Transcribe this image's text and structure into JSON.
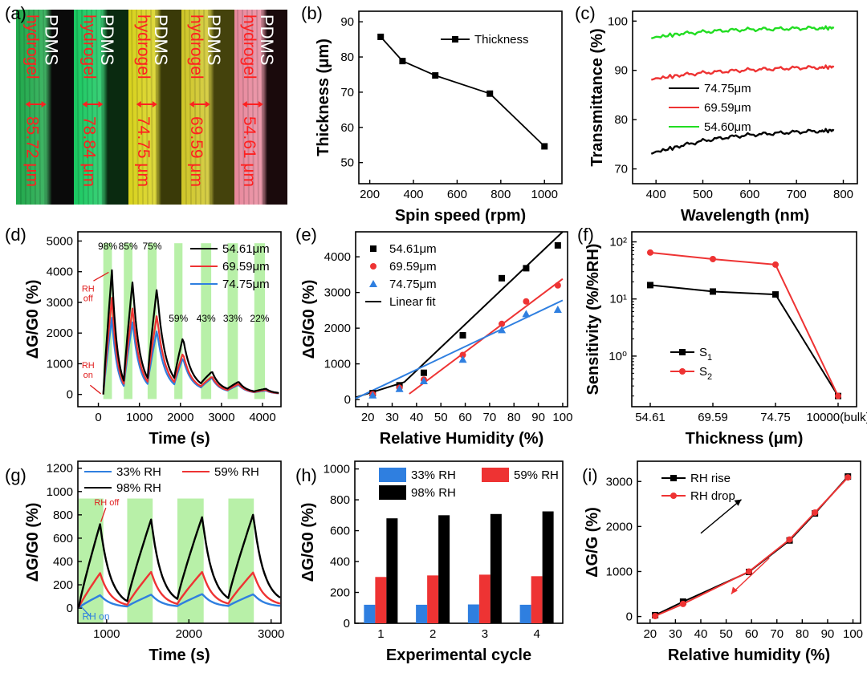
{
  "figure": {
    "panel_letters": [
      "(a)",
      "(b)",
      "(c)",
      "(d)",
      "(e)",
      "(f)",
      "(g)",
      "(h)",
      "(i)"
    ]
  },
  "panel_a": {
    "strips": [
      {
        "pdms": "PDMS",
        "hydrogel": "hydrogel",
        "thickness": "85.72 μm",
        "color": "#1fa84a",
        "edge": "#0a0a0a"
      },
      {
        "pdms": "PDMS",
        "hydrogel": "hydrogel",
        "thickness": "78.84 μm",
        "color": "#19c860",
        "edge": "#0a2a10"
      },
      {
        "pdms": "PDMS",
        "hydrogel": "hydrogel",
        "thickness": "74.75 μm",
        "color": "#d8d21c",
        "edge": "#3a3a08"
      },
      {
        "pdms": "PDMS",
        "hydrogel": "hydrogel",
        "thickness": "69.59 μm",
        "color": "#cfc628",
        "edge": "#44420c"
      },
      {
        "pdms": "PDMS",
        "hydrogel": "hydrogel",
        "thickness": "54.61 μm",
        "color": "#e8889c",
        "edge": "#1a0a0c"
      }
    ],
    "label_color": "#ff2020"
  },
  "chart_data": [
    {
      "panel": "b",
      "type": "line",
      "xlabel": "Spin speed (rpm)",
      "ylabel": "Thickness (μm)",
      "xlim": [
        150,
        1080
      ],
      "ylim": [
        44,
        93
      ],
      "xticks": [
        200,
        400,
        600,
        800,
        1000
      ],
      "yticks": [
        50,
        60,
        70,
        80,
        90
      ],
      "legend": "top-right",
      "series": [
        {
          "name": "Thickness",
          "color": "#000000",
          "marker": "square",
          "x": [
            250,
            350,
            500,
            750,
            1000
          ],
          "y": [
            85.72,
            78.84,
            74.75,
            69.59,
            54.61
          ]
        }
      ]
    },
    {
      "panel": "c",
      "type": "line",
      "xlabel": "Wavelength (nm)",
      "ylabel": "Transmittance (%)",
      "xlim": [
        350,
        830
      ],
      "ylim": [
        67,
        102
      ],
      "xticks": [
        400,
        500,
        600,
        700,
        800
      ],
      "yticks": [
        70,
        80,
        90,
        100
      ],
      "legend": "center-right",
      "series": [
        {
          "name": "74.75μm",
          "color": "#000000",
          "x": [
            390,
            450,
            500,
            550,
            600,
            650,
            700,
            750,
            780
          ],
          "y": [
            73.2,
            74.6,
            75.7,
            76.4,
            76.9,
            77.2,
            77.5,
            77.7,
            77.8
          ]
        },
        {
          "name": "69.59μm",
          "color": "#ee3333",
          "x": [
            390,
            450,
            500,
            550,
            600,
            650,
            700,
            750,
            780
          ],
          "y": [
            88.2,
            89.0,
            89.5,
            89.8,
            90.1,
            90.3,
            90.5,
            90.6,
            90.7
          ]
        },
        {
          "name": "54.60μm",
          "color": "#22dd22",
          "x": [
            390,
            450,
            500,
            550,
            600,
            650,
            700,
            750,
            780
          ],
          "y": [
            96.6,
            97.4,
            97.8,
            98.1,
            98.3,
            98.4,
            98.5,
            98.6,
            98.6
          ]
        }
      ]
    },
    {
      "panel": "d",
      "type": "line",
      "xlabel": "Time (s)",
      "ylabel": "ΔG/G0 (%)",
      "xlim": [
        -500,
        4450
      ],
      "ylim": [
        -400,
        5300
      ],
      "xticks": [
        0,
        1000,
        2000,
        3000,
        4000
      ],
      "yticks": [
        0,
        1000,
        2000,
        3000,
        4000,
        5000
      ],
      "legend": "top-right",
      "rh_bands": [
        [
          120,
          330
        ],
        [
          620,
          830
        ],
        [
          1200,
          1420
        ],
        [
          1850,
          2050
        ],
        [
          2500,
          2750
        ],
        [
          3150,
          3400
        ],
        [
          3800,
          4060
        ]
      ],
      "rh_labels": [
        "98%",
        "85%",
        "75%",
        "59%",
        "43%",
        "33%",
        "22%"
      ],
      "annotations": [
        "RH off",
        "RH on"
      ],
      "peaks_t": [
        330,
        830,
        1420,
        2050,
        2750,
        3400,
        4060
      ],
      "rise_t": [
        120,
        620,
        1200,
        1850,
        2500,
        3150,
        3800
      ],
      "series": [
        {
          "name": "54.61μm",
          "color": "#000000",
          "peaks": [
            4050,
            3650,
            3400,
            1800,
            720,
            400,
            180
          ]
        },
        {
          "name": "69.59μm",
          "color": "#ee3333",
          "peaks": [
            3150,
            2800,
            2550,
            1300,
            560,
            330,
            140
          ]
        },
        {
          "name": "74.75μm",
          "color": "#2f7fe0",
          "peaks": [
            2500,
            2350,
            2050,
            1150,
            520,
            300,
            120
          ]
        }
      ]
    },
    {
      "panel": "e",
      "type": "scatter",
      "xlabel": "Relative Humidity (%)",
      "ylabel": "ΔG/G0 (%)",
      "xlim": [
        15,
        102
      ],
      "ylim": [
        -200,
        4700
      ],
      "xticks": [
        20,
        30,
        40,
        50,
        60,
        70,
        80,
        90,
        100
      ],
      "yticks": [
        0,
        1000,
        2000,
        3000,
        4000
      ],
      "legend": "top-left",
      "series": [
        {
          "name": "54.61μm",
          "color": "#000000",
          "marker": "square",
          "x": [
            22,
            33,
            43,
            59,
            75,
            85,
            98
          ],
          "y": [
            180,
            400,
            750,
            1800,
            3400,
            3680,
            4320
          ]
        },
        {
          "name": "69.59μm",
          "color": "#ee3333",
          "marker": "circle",
          "x": [
            22,
            33,
            43,
            59,
            75,
            85,
            98
          ],
          "y": [
            150,
            330,
            560,
            1250,
            2120,
            2750,
            3200
          ]
        },
        {
          "name": "74.75μm",
          "color": "#2f7fe0",
          "marker": "triangle",
          "x": [
            22,
            33,
            43,
            59,
            75,
            85,
            98
          ],
          "y": [
            120,
            300,
            520,
            1120,
            1950,
            2400,
            2520
          ]
        },
        {
          "name": "Linear fit",
          "color": "#000000",
          "marker": "none"
        }
      ],
      "fits": [
        {
          "color": "#000000",
          "x": [
            15,
            35,
            100
          ],
          "y": [
            60,
            490,
            4700
          ]
        },
        {
          "color": "#ee3333",
          "x": [
            37,
            100
          ],
          "y": [
            160,
            3380
          ]
        },
        {
          "color": "#2f7fe0",
          "x": [
            15,
            100
          ],
          "y": [
            30,
            2780
          ]
        }
      ]
    },
    {
      "panel": "f",
      "type": "line",
      "xlabel": "Thickness (μm)",
      "ylabel": "Sensitivity (%/%RH)",
      "yscale": "log",
      "ylim": [
        0.13,
        150
      ],
      "categories": [
        "54.61",
        "69.59",
        "74.75",
        "10000(bulk)"
      ],
      "yticks": [
        "10⁰",
        "10¹",
        "10²"
      ],
      "legend": "bottom-left",
      "series": [
        {
          "name": "S1",
          "color": "#000000",
          "marker": "square",
          "values": [
            17.5,
            13.5,
            12.0,
            0.2
          ]
        },
        {
          "name": "S2",
          "color": "#ee3333",
          "marker": "circle",
          "values": [
            65.0,
            50.0,
            40.0,
            0.2
          ]
        }
      ]
    },
    {
      "panel": "g",
      "type": "line",
      "xlabel": "Time (s)",
      "ylabel": "ΔG/G0 (%)",
      "xlim": [
        650,
        3120
      ],
      "ylim": [
        -130,
        1260
      ],
      "xticks": [
        1000,
        2000,
        3000
      ],
      "yticks": [
        0,
        200,
        400,
        600,
        800,
        1000,
        1200
      ],
      "legend": "top",
      "rh_bands": [
        [
          660,
          960
        ],
        [
          1250,
          1560
        ],
        [
          1860,
          2180
        ],
        [
          2480,
          2790
        ]
      ],
      "annotations": [
        "RH off",
        "RH on"
      ],
      "peaks_t": [
        920,
        1540,
        2160,
        2780
      ],
      "rise_t": [
        660,
        1250,
        1860,
        2480
      ],
      "series": [
        {
          "name": "33% RH",
          "color": "#2f7fe0",
          "peaks": [
            110,
            115,
            120,
            118
          ]
        },
        {
          "name": "59% RH",
          "color": "#ee3333",
          "peaks": [
            300,
            310,
            310,
            305
          ]
        },
        {
          "name": "98% RH",
          "color": "#000000",
          "peaks": [
            720,
            760,
            780,
            800
          ]
        }
      ]
    },
    {
      "panel": "h",
      "type": "bar",
      "xlabel": "Experimental cycle",
      "ylabel": "ΔG/G0 (%)",
      "ylim": [
        0,
        1050
      ],
      "yticks": [
        0,
        200,
        400,
        600,
        800,
        1000
      ],
      "categories": [
        "1",
        "2",
        "3",
        "4"
      ],
      "legend": "top",
      "series": [
        {
          "name": "33% RH",
          "color": "#2f7fe0",
          "values": [
            120,
            120,
            122,
            120
          ]
        },
        {
          "name": "59% RH",
          "color": "#ee3333",
          "values": [
            300,
            310,
            315,
            305
          ]
        },
        {
          "name": "98% RH",
          "color": "#000000",
          "values": [
            680,
            700,
            708,
            725
          ]
        }
      ]
    },
    {
      "panel": "i",
      "type": "line",
      "xlabel": "Relative humidity (%)",
      "ylabel": "ΔG/G (%)",
      "xlim": [
        15,
        103
      ],
      "ylim": [
        -150,
        3450
      ],
      "xticks": [
        20,
        30,
        40,
        50,
        60,
        70,
        80,
        90,
        100
      ],
      "yticks": [
        0,
        1000,
        2000,
        3000
      ],
      "legend": "top-left",
      "series": [
        {
          "name": "RH rise",
          "color": "#000000",
          "marker": "square",
          "x": [
            22,
            33,
            59,
            75,
            85,
            98
          ],
          "y": [
            30,
            330,
            990,
            1690,
            2290,
            3110
          ]
        },
        {
          "name": "RH drop",
          "color": "#ee3333",
          "marker": "circle",
          "x": [
            22,
            33,
            59,
            75,
            85,
            98
          ],
          "y": [
            10,
            280,
            1000,
            1710,
            2310,
            3090
          ]
        }
      ]
    }
  ]
}
